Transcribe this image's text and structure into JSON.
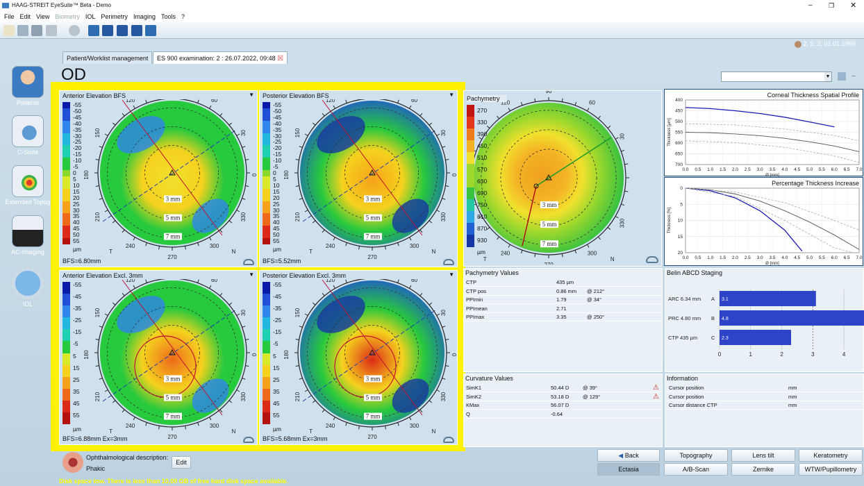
{
  "window": {
    "title": "HAAG-STREIT EyeSuite™  Beta  - Demo"
  },
  "menu": [
    "File",
    "Edit",
    "View",
    "Biometry",
    "IOL",
    "Perimetry",
    "Imaging",
    "Tools",
    "?"
  ],
  "patient_info": "2, 2, 2, 01.01.1969",
  "sidebar": [
    {
      "label": "Patients"
    },
    {
      "label": "C-Suite"
    },
    {
      "label": "Extended Topog"
    },
    {
      "label": "AC-Imaging"
    },
    {
      "label": "IOL"
    }
  ],
  "tabs": [
    {
      "label": "Patient/Worklist management"
    },
    {
      "label": "ES 900 examination: 2 : 26.07.2022, 09:48"
    }
  ],
  "eye": "OD",
  "maps": [
    {
      "title": "Anterior Elevation BFS",
      "scale": [
        "-55",
        "-50",
        "-45",
        "-40",
        "-35",
        "-30",
        "-25",
        "-20",
        "-15",
        "-10",
        "-5",
        "0",
        "5",
        "10",
        "15",
        "20",
        "25",
        "30",
        "35",
        "40",
        "45",
        "50",
        "55"
      ],
      "unit": "µm",
      "footer": "BFS=6.80mm",
      "rings": [
        "3 mm",
        "5 mm",
        "7 mm"
      ]
    },
    {
      "title": "Posterior Elevation BFS",
      "scale": [
        "-55",
        "-50",
        "-45",
        "-40",
        "-35",
        "-30",
        "-25",
        "-20",
        "-15",
        "-10",
        "-5",
        "0",
        "5",
        "10",
        "15",
        "20",
        "25",
        "30",
        "35",
        "40",
        "45",
        "50",
        "55"
      ],
      "unit": "µm",
      "footer": "BFS=5.52mm",
      "rings": [
        "3 mm",
        "5 mm",
        "7 mm"
      ]
    },
    {
      "title": "Anterior Elevation Excl. 3mm",
      "scale": [
        "-55",
        "-45",
        "-35",
        "-25",
        "-15",
        "-5",
        "5",
        "15",
        "25",
        "35",
        "45",
        "55"
      ],
      "unit": "µm",
      "footer": "BFS=6.88mm Ex=3mm",
      "rings": [
        "3 mm",
        "5 mm",
        "7 mm"
      ]
    },
    {
      "title": "Posterior Elevation Excl. 3mm",
      "scale": [
        "-55",
        "-45",
        "-35",
        "-25",
        "-15",
        "-5",
        "5",
        "15",
        "25",
        "35",
        "45",
        "55"
      ],
      "unit": "µm",
      "footer": "BFS=5.68mm Ex=3mm",
      "rings": [
        "3 mm",
        "5 mm",
        "7 mm"
      ]
    }
  ],
  "compass": {
    "top": "90",
    "tl": "120",
    "tr": "60",
    "l1": "150",
    "r1": "30",
    "left": "180",
    "right": "0",
    "l2": "210",
    "r2": "330",
    "bl": "240",
    "br": "300",
    "bottom": "270",
    "T": "T",
    "N": "N"
  },
  "pachymetry": {
    "title": "Pachymetry",
    "scale": [
      "270",
      "330",
      "390",
      "450",
      "510",
      "570",
      "630",
      "690",
      "750",
      "810",
      "870",
      "930"
    ],
    "unit": "µm",
    "rings": [
      "3 mm",
      "5 mm",
      "7 mm"
    ]
  },
  "thickness_profile": {
    "title": "Corneal Thickness Spatial Profile",
    "ylabel": "Thickness [µm]",
    "yticks": [
      "400",
      "450",
      "500",
      "550",
      "600",
      "650",
      "700"
    ],
    "xticks": [
      "0.0",
      "0.5",
      "1.0",
      "1.5",
      "2.0",
      "2.5",
      "3.0",
      "3.5",
      "4.0",
      "4.5",
      "5.0",
      "5.5",
      "6.0",
      "6.5",
      "7.0"
    ],
    "xlabel": "Ø [mm]"
  },
  "percent_increase": {
    "title": "Percentage Thickness Increase",
    "ylabel": "Thickness [%]",
    "yticks": [
      "0",
      "5",
      "10",
      "15",
      "20"
    ],
    "xticks": [
      "0.0",
      "0.5",
      "1.0",
      "1.5",
      "2.0",
      "2.5",
      "3.0",
      "3.5",
      "4.0",
      "4.5",
      "5.0",
      "5.5",
      "6.0",
      "6.5",
      "7.0"
    ],
    "xlabel": "Ø [mm]"
  },
  "pachy_values": {
    "title": "Pachymetry Values",
    "rows": [
      [
        "CTP",
        "435 µm",
        ""
      ],
      [
        "CTP pos",
        "0.86 mm",
        "@ 212°"
      ],
      [
        "PPImin",
        "1.79",
        "@ 34°"
      ],
      [
        "PPImean",
        "2.71",
        ""
      ],
      [
        "PPImax",
        "3.35",
        "@ 250°"
      ]
    ]
  },
  "belin": {
    "title": "Belin ABCD Staging",
    "rows": [
      {
        "label": "ARC 6.34 mm",
        "letter": "A",
        "value": "3.1",
        "num": 3.1
      },
      {
        "label": "PRC 4.80 mm",
        "letter": "B",
        "value": "4.8",
        "num": 4.8
      },
      {
        "label": "CTP 435 µm",
        "letter": "C",
        "value": "2.3",
        "num": 2.3
      }
    ],
    "axis": [
      "0",
      "1",
      "2",
      "3",
      "4"
    ]
  },
  "curvature": {
    "title": "Curvature Values",
    "rows": [
      [
        "SimK1",
        "50.44 D",
        "@ 39°"
      ],
      [
        "SimK2",
        "53.18 D",
        "@ 129°"
      ],
      [
        "KMax",
        "56.07 D",
        ""
      ],
      [
        "Q",
        "-0.64",
        ""
      ]
    ]
  },
  "information": {
    "title": "Information",
    "rows": [
      [
        "Cursor position",
        "mm"
      ],
      [
        "Cursor position",
        "mm"
      ],
      [
        "Cursor distance CTP",
        "mm"
      ]
    ]
  },
  "description": {
    "label": "Ophthalmological description:",
    "value": "Phakic",
    "edit": "Edit"
  },
  "buttons": {
    "back": "Back",
    "topography": "Topography",
    "lens_tilt": "Lens tilt",
    "keratometry": "Keratometry",
    "ectasia": "Ectasia",
    "ab_scan": "A/B-Scan",
    "zernike": "Zernike",
    "wtw": "WTW/Pupillometry"
  },
  "warning": "Disk space low. There is less than 10,00 GB of free hard disk space available.",
  "colors": {
    "highlight": "#fff200",
    "warning_text": "#ffff00",
    "bar": "#2d43c8"
  }
}
